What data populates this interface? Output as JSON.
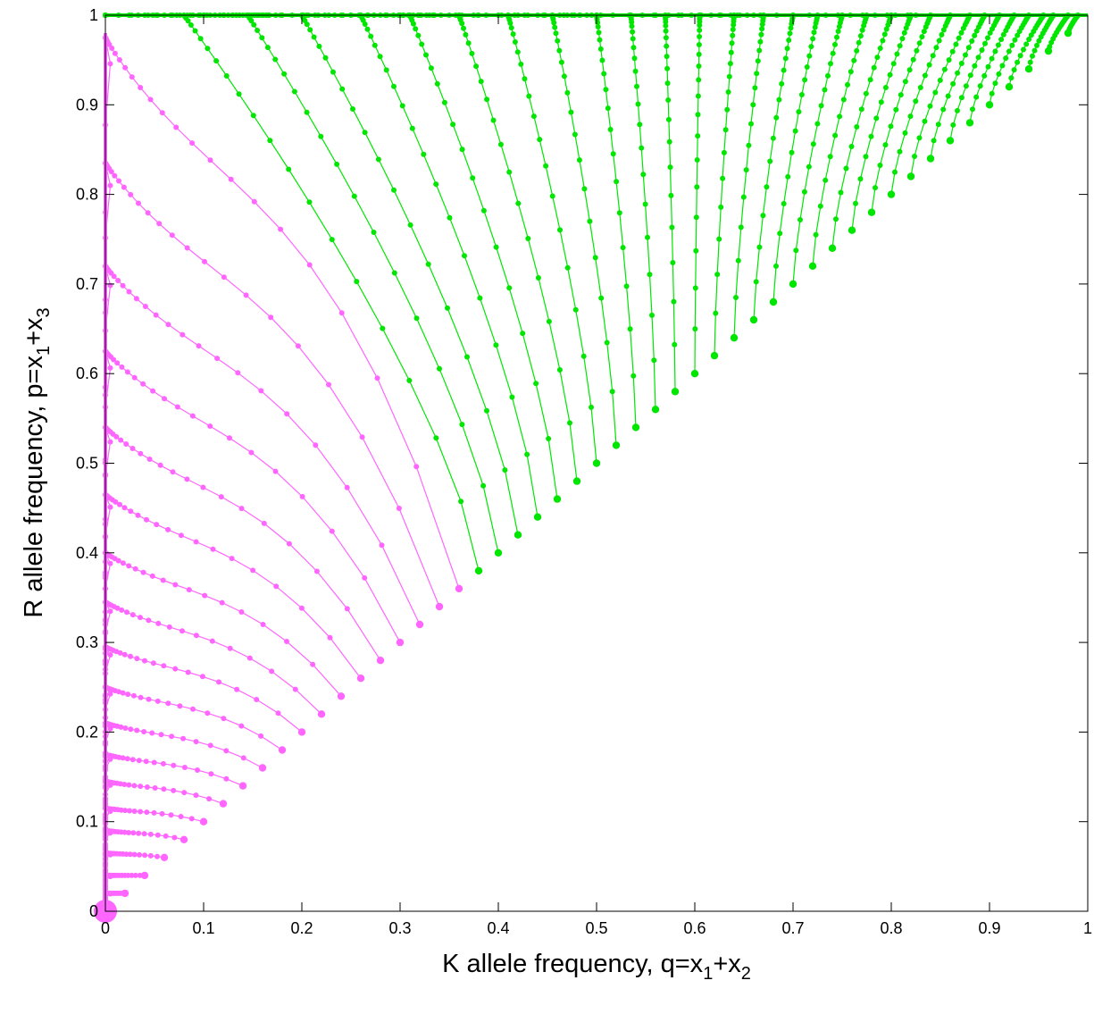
{
  "chart_data": {
    "type": "line",
    "xlabel": {
      "base": "K allele frequency, q=x",
      "sub1": "1",
      "mid": "+x",
      "sub2": "2"
    },
    "ylabel": {
      "base": "R allele frequency, p=x",
      "sub1": "1",
      "mid": "+x",
      "sub2": "3"
    },
    "xlim": [
      0,
      1
    ],
    "ylim": [
      0,
      1
    ],
    "x_ticks": [
      "0",
      "0.1",
      "0.2",
      "0.3",
      "0.4",
      "0.5",
      "0.6",
      "0.7",
      "0.8",
      "0.9",
      "1"
    ],
    "y_ticks": [
      "0",
      "0.1",
      "0.2",
      "0.3",
      "0.4",
      "0.5",
      "0.6",
      "0.7",
      "0.8",
      "0.9",
      "1"
    ],
    "grid": false,
    "legend": "none",
    "colors": {
      "magenta": "#ff66ff",
      "green": "#00e600"
    },
    "series": [
      {
        "color": "magenta",
        "start": [
          0.02,
          0.02
        ],
        "peak": 0.02
      },
      {
        "color": "magenta",
        "start": [
          0.04,
          0.04
        ],
        "peak": 0.04
      },
      {
        "color": "magenta",
        "start": [
          0.06,
          0.06
        ],
        "peak": 0.065
      },
      {
        "color": "magenta",
        "start": [
          0.08,
          0.08
        ],
        "peak": 0.09
      },
      {
        "color": "magenta",
        "start": [
          0.1,
          0.1
        ],
        "peak": 0.115
      },
      {
        "color": "magenta",
        "start": [
          0.12,
          0.12
        ],
        "peak": 0.145
      },
      {
        "color": "magenta",
        "start": [
          0.14,
          0.14
        ],
        "peak": 0.175
      },
      {
        "color": "magenta",
        "start": [
          0.16,
          0.16
        ],
        "peak": 0.21
      },
      {
        "color": "magenta",
        "start": [
          0.18,
          0.18
        ],
        "peak": 0.25
      },
      {
        "color": "magenta",
        "start": [
          0.2,
          0.2
        ],
        "peak": 0.295
      },
      {
        "color": "magenta",
        "start": [
          0.22,
          0.22
        ],
        "peak": 0.345
      },
      {
        "color": "magenta",
        "start": [
          0.24,
          0.24
        ],
        "peak": 0.4
      },
      {
        "color": "magenta",
        "start": [
          0.26,
          0.26
        ],
        "peak": 0.465
      },
      {
        "color": "magenta",
        "start": [
          0.28,
          0.28
        ],
        "peak": 0.54
      },
      {
        "color": "magenta",
        "start": [
          0.3,
          0.3
        ],
        "peak": 0.625
      },
      {
        "color": "magenta",
        "start": [
          0.32,
          0.32
        ],
        "peak": 0.72
      },
      {
        "color": "magenta",
        "start": [
          0.34,
          0.34
        ],
        "peak": 0.835
      },
      {
        "color": "magenta",
        "start": [
          0.36,
          0.36
        ],
        "peak": 0.975
      },
      {
        "color": "green",
        "start": [
          0.38,
          0.38
        ],
        "end": [
          0.08,
          1.0
        ]
      },
      {
        "color": "green",
        "start": [
          0.4,
          0.4
        ],
        "end": [
          0.145,
          1.0
        ]
      },
      {
        "color": "green",
        "start": [
          0.42,
          0.42
        ],
        "end": [
          0.2,
          1.0
        ]
      },
      {
        "color": "green",
        "start": [
          0.44,
          0.44
        ],
        "end": [
          0.26,
          1.0
        ]
      },
      {
        "color": "green",
        "start": [
          0.46,
          0.46
        ],
        "end": [
          0.31,
          1.0
        ]
      },
      {
        "color": "green",
        "start": [
          0.48,
          0.48
        ],
        "end": [
          0.36,
          1.0
        ]
      },
      {
        "color": "green",
        "start": [
          0.5,
          0.5
        ],
        "end": [
          0.41,
          1.0
        ]
      },
      {
        "color": "green",
        "start": [
          0.52,
          0.52
        ],
        "end": [
          0.455,
          1.0
        ]
      },
      {
        "color": "green",
        "start": [
          0.54,
          0.54
        ],
        "end": [
          0.5,
          1.0
        ]
      },
      {
        "color": "green",
        "start": [
          0.56,
          0.56
        ],
        "end": [
          0.535,
          1.0
        ]
      },
      {
        "color": "green",
        "start": [
          0.58,
          0.58
        ],
        "end": [
          0.57,
          1.0
        ]
      },
      {
        "color": "green",
        "start": [
          0.6,
          0.6
        ],
        "end": [
          0.605,
          1.0
        ]
      },
      {
        "color": "green",
        "start": [
          0.62,
          0.62
        ],
        "end": [
          0.64,
          1.0
        ]
      },
      {
        "color": "green",
        "start": [
          0.64,
          0.64
        ],
        "end": [
          0.67,
          1.0
        ]
      },
      {
        "color": "green",
        "start": [
          0.66,
          0.66
        ],
        "end": [
          0.7,
          1.0
        ]
      },
      {
        "color": "green",
        "start": [
          0.68,
          0.68
        ],
        "end": [
          0.725,
          1.0
        ]
      },
      {
        "color": "green",
        "start": [
          0.7,
          0.7
        ],
        "end": [
          0.75,
          1.0
        ]
      },
      {
        "color": "green",
        "start": [
          0.72,
          0.72
        ],
        "end": [
          0.775,
          1.0
        ]
      },
      {
        "color": "green",
        "start": [
          0.74,
          0.74
        ],
        "end": [
          0.8,
          1.0
        ]
      },
      {
        "color": "green",
        "start": [
          0.76,
          0.76
        ],
        "end": [
          0.82,
          1.0
        ]
      },
      {
        "color": "green",
        "start": [
          0.78,
          0.78
        ],
        "end": [
          0.84,
          1.0
        ]
      },
      {
        "color": "green",
        "start": [
          0.8,
          0.8
        ],
        "end": [
          0.86,
          1.0
        ]
      },
      {
        "color": "green",
        "start": [
          0.82,
          0.82
        ],
        "end": [
          0.88,
          1.0
        ]
      },
      {
        "color": "green",
        "start": [
          0.84,
          0.84
        ],
        "end": [
          0.895,
          1.0
        ]
      },
      {
        "color": "green",
        "start": [
          0.86,
          0.86
        ],
        "end": [
          0.91,
          1.0
        ]
      },
      {
        "color": "green",
        "start": [
          0.88,
          0.88
        ],
        "end": [
          0.925,
          1.0
        ]
      },
      {
        "color": "green",
        "start": [
          0.9,
          0.9
        ],
        "end": [
          0.94,
          1.0
        ]
      },
      {
        "color": "green",
        "start": [
          0.92,
          0.92
        ],
        "end": [
          0.955,
          1.0
        ]
      },
      {
        "color": "green",
        "start": [
          0.94,
          0.94
        ],
        "end": [
          0.965,
          1.0
        ]
      },
      {
        "color": "green",
        "start": [
          0.96,
          0.96
        ],
        "end": [
          0.98,
          1.0
        ]
      },
      {
        "color": "green",
        "start": [
          0.98,
          0.98
        ],
        "end": [
          0.99,
          1.0
        ]
      }
    ],
    "attractors": [
      {
        "color": "magenta",
        "point": [
          0,
          0
        ]
      },
      {
        "color": "green",
        "point": [
          0,
          1
        ],
        "line_to": [
          1,
          1
        ]
      }
    ]
  }
}
